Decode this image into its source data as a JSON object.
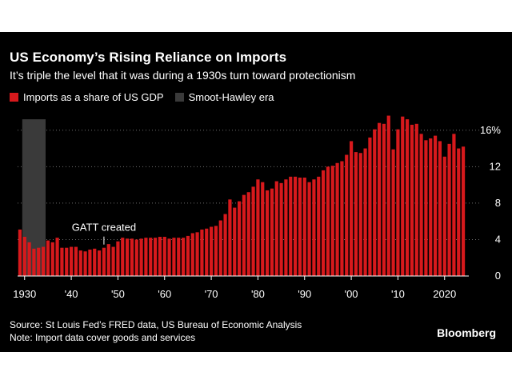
{
  "header": {
    "title": "US Economy’s Rising Reliance on Imports",
    "subtitle": "It’s triple the level that it was during a 1930s turn toward protectionism"
  },
  "legend": [
    {
      "label": "Imports as a share of US GDP",
      "color": "#d7191c"
    },
    {
      "label": "Smoot-Hawley era",
      "color": "#3a3a3a"
    }
  ],
  "footer": {
    "source": "Source: St Louis Fed’s FRED data, US Bureau of Economic Analysis",
    "note": "Note: Import data cover goods and services",
    "brand": "Bloomberg"
  },
  "chart_data": {
    "type": "bar",
    "x": [
      1929,
      1930,
      1931,
      1932,
      1933,
      1934,
      1935,
      1936,
      1937,
      1938,
      1939,
      1940,
      1941,
      1942,
      1943,
      1944,
      1945,
      1946,
      1947,
      1948,
      1949,
      1950,
      1951,
      1952,
      1953,
      1954,
      1955,
      1956,
      1957,
      1958,
      1959,
      1960,
      1961,
      1962,
      1963,
      1964,
      1965,
      1966,
      1967,
      1968,
      1969,
      1970,
      1971,
      1972,
      1973,
      1974,
      1975,
      1976,
      1977,
      1978,
      1979,
      1980,
      1981,
      1982,
      1983,
      1984,
      1985,
      1986,
      1987,
      1988,
      1989,
      1990,
      1991,
      1992,
      1993,
      1994,
      1995,
      1996,
      1997,
      1998,
      1999,
      2000,
      2001,
      2002,
      2003,
      2004,
      2005,
      2006,
      2007,
      2008,
      2009,
      2010,
      2011,
      2012,
      2013,
      2014,
      2015,
      2016,
      2017,
      2018,
      2019,
      2020,
      2021,
      2022,
      2023,
      2024
    ],
    "series": [
      {
        "name": "Imports as a share of US GDP",
        "values": [
          5.1,
          4.3,
          3.7,
          3.0,
          3.1,
          3.2,
          3.9,
          3.7,
          4.2,
          3.1,
          3.1,
          3.2,
          3.2,
          2.8,
          2.7,
          2.9,
          3.0,
          2.8,
          3.1,
          3.5,
          3.2,
          3.8,
          4.2,
          4.1,
          4.1,
          4.0,
          4.1,
          4.2,
          4.2,
          4.2,
          4.3,
          4.3,
          4.1,
          4.2,
          4.2,
          4.2,
          4.4,
          4.7,
          4.8,
          5.1,
          5.2,
          5.4,
          5.5,
          6.1,
          6.8,
          8.4,
          7.5,
          8.2,
          8.9,
          9.2,
          9.8,
          10.6,
          10.3,
          9.4,
          9.6,
          10.4,
          10.2,
          10.6,
          10.9,
          10.9,
          10.8,
          10.8,
          10.3,
          10.6,
          10.9,
          11.6,
          12.0,
          12.1,
          12.4,
          12.6,
          13.3,
          14.8,
          13.6,
          13.5,
          14.0,
          15.2,
          16.1,
          16.8,
          16.7,
          17.6,
          13.9,
          16.1,
          17.5,
          17.2,
          16.6,
          16.7,
          15.6,
          14.9,
          15.1,
          15.4,
          14.8,
          13.1,
          14.5,
          15.6,
          14.0,
          14.2
        ]
      }
    ],
    "shaded_ranges": [
      {
        "name": "Smoot-Hawley era",
        "from": 1930,
        "to": 1934
      }
    ],
    "annotations": [
      {
        "text": "GATT created",
        "x": 1947
      }
    ],
    "x_ticks": [
      {
        "value": 1930,
        "label": "1930"
      },
      {
        "value": 1940,
        "label": "'40"
      },
      {
        "value": 1950,
        "label": "'50"
      },
      {
        "value": 1960,
        "label": "'60"
      },
      {
        "value": 1970,
        "label": "'70"
      },
      {
        "value": 1980,
        "label": "'80"
      },
      {
        "value": 1990,
        "label": "'90"
      },
      {
        "value": 2000,
        "label": "'00"
      },
      {
        "value": 2010,
        "label": "'10"
      },
      {
        "value": 2020,
        "label": "2020"
      }
    ],
    "y_ticks": [
      {
        "value": 0,
        "label": "0"
      },
      {
        "value": 4,
        "label": "4"
      },
      {
        "value": 8,
        "label": "8"
      },
      {
        "value": 12,
        "label": "12"
      },
      {
        "value": 16,
        "label": "16%"
      }
    ],
    "ylim": [
      0,
      18
    ],
    "grid": "horizontal-dotted",
    "legend_position": "top-left"
  }
}
